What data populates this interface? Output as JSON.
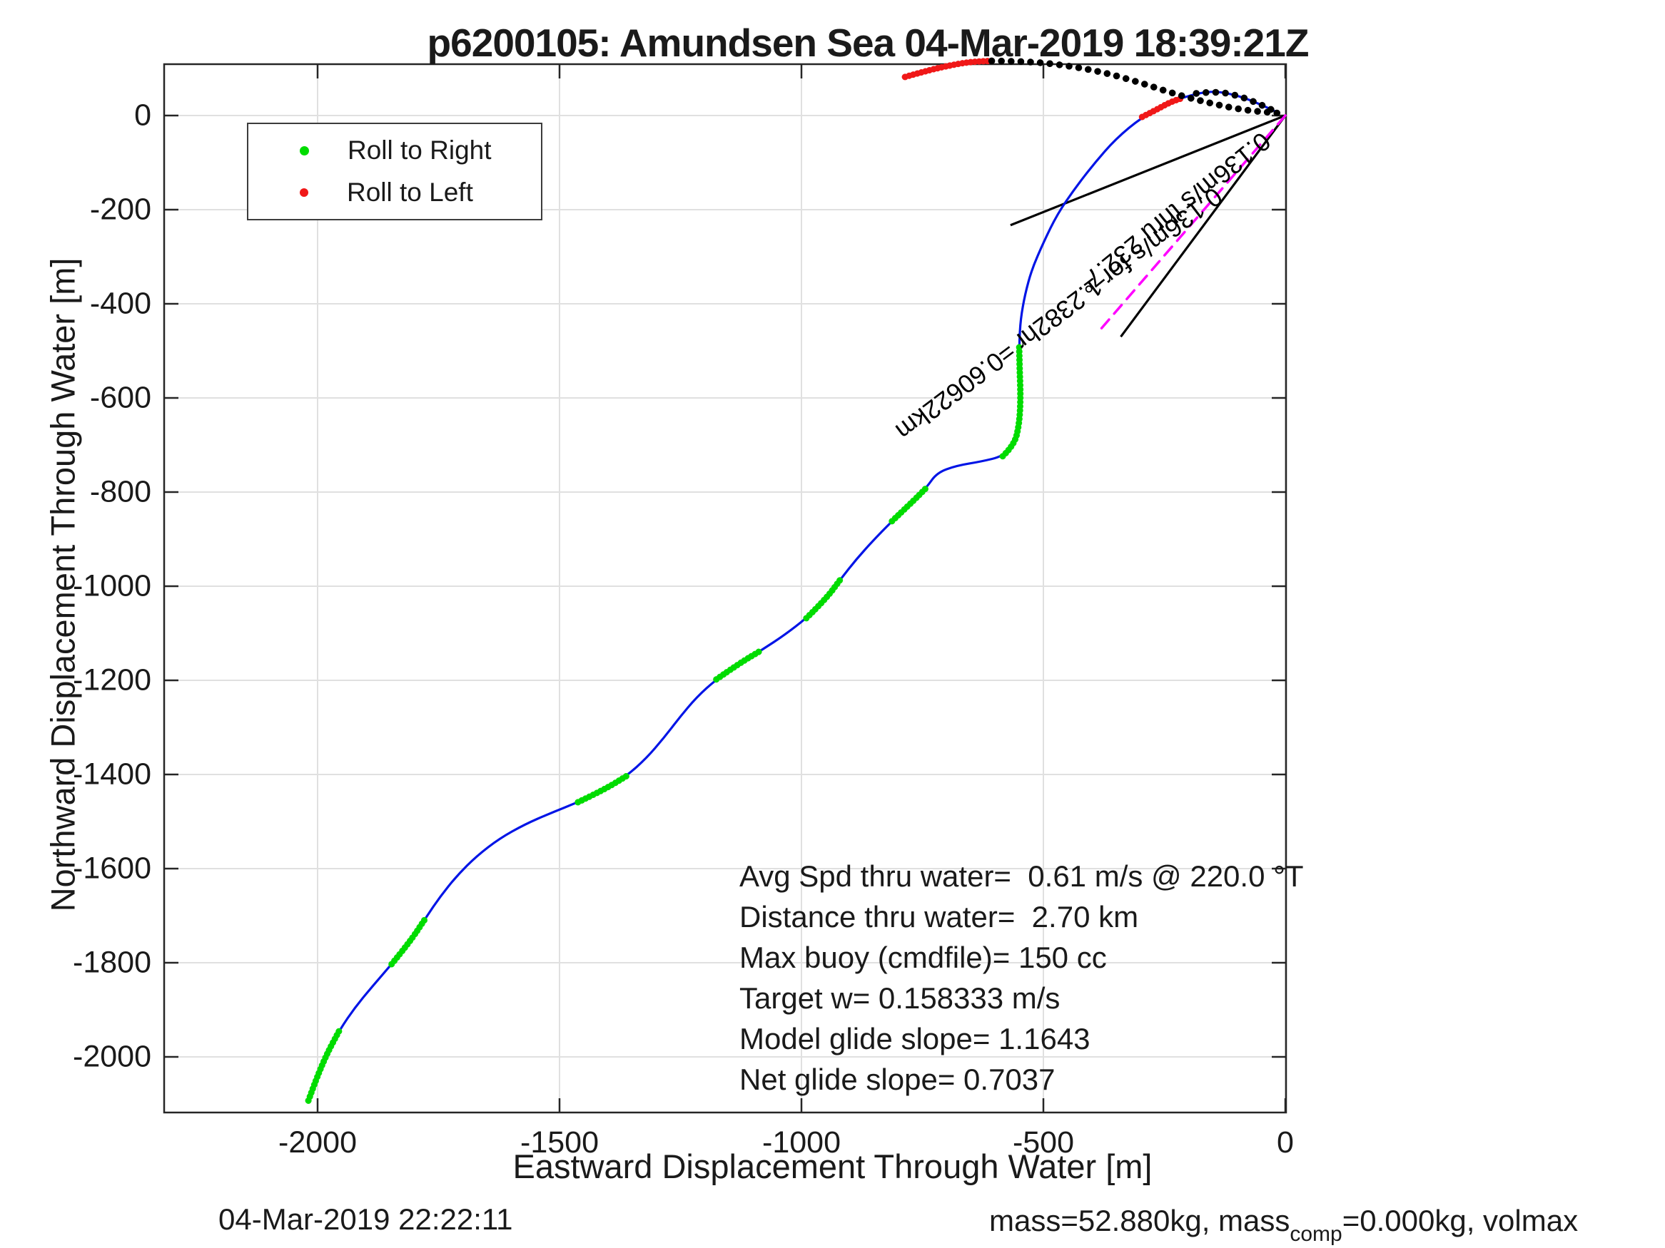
{
  "title": "p6200105: Amundsen Sea 04-Mar-2019 18:39:21Z",
  "axes": {
    "xlabel": "Eastward Displacement Through Water [m]",
    "ylabel": "Northward Displacement Through Water [m]",
    "x_ticks": [
      "-2000",
      "-1500",
      "-1000",
      "-500",
      "0"
    ],
    "y_ticks": [
      "0",
      "-200",
      "-400",
      "-600",
      "-800",
      "-1000",
      "-1200",
      "-1400",
      "-1600",
      "-1800",
      "-2000"
    ]
  },
  "legend": {
    "items": [
      {
        "label": "Roll to Right",
        "color": "#00dc00"
      },
      {
        "label": "Roll to Left",
        "color": "#f01818"
      }
    ]
  },
  "annotations": {
    "vector_label": "0.136m/s for 1.2382hr =0.60622km",
    "bearing_label": "0.136m/s thru 232.7°",
    "stats_lines": [
      "Avg Spd thru water=  0.61 m/s @ 220.0 °T",
      "Distance thru water=  2.70 km",
      "Max buoy (cmdfile)= 150 cc",
      "Target w= 0.158333 m/s",
      "Model glide slope= 1.1643",
      "Net glide slope= 0.7037"
    ]
  },
  "footer": {
    "left_timestamp": "04-Mar-2019 22:22:11",
    "right_pre": "mass=52.880kg, mass",
    "right_sub": "comp",
    "right_post": "=0.000kg, volmax"
  },
  "chart_data": {
    "type": "line",
    "title": "p6200105: Amundsen Sea 04-Mar-2019 18:39:21Z",
    "xlabel": "Eastward Displacement Through Water [m]",
    "ylabel": "Northward Displacement Through Water [m]",
    "xlim": [
      -2317,
      0
    ],
    "ylim": [
      -2126,
      109
    ],
    "x_ticks": [
      -2000,
      -1500,
      -1000,
      -500,
      0
    ],
    "y_ticks": [
      0,
      -200,
      -400,
      -600,
      -800,
      -1000,
      -1200,
      -1400,
      -1600,
      -1800,
      -2000
    ],
    "grid": true,
    "legend_position": "upper-left",
    "series": [
      {
        "name": "dive-track",
        "color": "#0014e6",
        "style": "line",
        "points": [
          [
            -2019,
            -2093
          ],
          [
            -2002,
            -2045
          ],
          [
            -1981,
            -1994
          ],
          [
            -1954,
            -1942
          ],
          [
            -1922,
            -1894
          ],
          [
            -1885,
            -1848
          ],
          [
            -1847,
            -1803
          ],
          [
            -1811,
            -1758
          ],
          [
            -1779,
            -1709
          ],
          [
            -1748,
            -1661
          ],
          [
            -1712,
            -1615
          ],
          [
            -1671,
            -1573
          ],
          [
            -1624,
            -1536
          ],
          [
            -1572,
            -1506
          ],
          [
            -1518,
            -1482
          ],
          [
            -1462,
            -1459
          ],
          [
            -1409,
            -1433
          ],
          [
            -1361,
            -1403
          ],
          [
            -1320,
            -1365
          ],
          [
            -1285,
            -1323
          ],
          [
            -1252,
            -1279
          ],
          [
            -1217,
            -1236
          ],
          [
            -1176,
            -1198
          ],
          [
            -1130,
            -1165
          ],
          [
            -1081,
            -1135
          ],
          [
            -1034,
            -1103
          ],
          [
            -990,
            -1068
          ],
          [
            -951,
            -1029
          ],
          [
            -919,
            -985
          ],
          [
            -886,
            -942
          ],
          [
            -851,
            -902
          ],
          [
            -813,
            -862
          ],
          [
            -774,
            -824
          ],
          [
            -742,
            -791
          ],
          [
            -720,
            -759
          ],
          [
            -680,
            -744
          ],
          [
            -628,
            -735
          ],
          [
            -584,
            -724
          ],
          [
            -560,
            -700
          ],
          [
            -550,
            -656
          ],
          [
            -547,
            -603
          ],
          [
            -549,
            -542
          ],
          [
            -550,
            -486
          ],
          [
            -547,
            -432
          ],
          [
            -538,
            -380
          ],
          [
            -524,
            -327
          ],
          [
            -500,
            -270
          ],
          [
            -471,
            -209
          ],
          [
            -435,
            -155
          ],
          [
            -395,
            -102
          ],
          [
            -351,
            -50
          ],
          [
            -296,
            -3
          ],
          [
            -237,
            29
          ],
          [
            -184,
            47
          ],
          [
            -142,
            52
          ],
          [
            -93,
            41
          ],
          [
            -50,
            23
          ],
          [
            -13,
            5
          ]
        ]
      },
      {
        "name": "roll-to-right",
        "color": "#00dc00",
        "style": "dots-dense",
        "segments": [
          [
            [
              -2019,
              -2093
            ],
            [
              -2002,
              -2045
            ],
            [
              -1981,
              -1994
            ],
            [
              -1954,
              -1942
            ]
          ],
          [
            [
              -1847,
              -1803
            ],
            [
              -1811,
              -1758
            ],
            [
              -1779,
              -1709
            ]
          ],
          [
            [
              -1462,
              -1459
            ],
            [
              -1409,
              -1433
            ],
            [
              -1361,
              -1403
            ]
          ],
          [
            [
              -1176,
              -1198
            ],
            [
              -1130,
              -1165
            ],
            [
              -1081,
              -1135
            ]
          ],
          [
            [
              -990,
              -1068
            ],
            [
              -951,
              -1029
            ],
            [
              -919,
              -985
            ]
          ],
          [
            [
              -813,
              -862
            ],
            [
              -774,
              -824
            ],
            [
              -742,
              -791
            ]
          ],
          [
            [
              -584,
              -724
            ],
            [
              -560,
              -700
            ],
            [
              -550,
              -656
            ],
            [
              -547,
              -603
            ],
            [
              -549,
              -542
            ],
            [
              -550,
              -486
            ]
          ]
        ]
      },
      {
        "name": "roll-to-left",
        "color": "#f01818",
        "style": "dots-dense",
        "segments": [
          [
            [
              -296,
              -3
            ],
            [
              -267,
              12
            ],
            [
              -237,
              29
            ],
            [
              -210,
              38
            ]
          ],
          [
            [
              -786,
              82
            ],
            [
              -745,
              94
            ],
            [
              -700,
              105
            ],
            [
              -653,
              114
            ],
            [
              -607,
              116
            ]
          ]
        ]
      },
      {
        "name": "surface-fixes",
        "color": "#000000",
        "style": "dots",
        "segments": [
          [
            [
              -184,
              47
            ],
            [
              -142,
              52
            ],
            [
              -93,
              41
            ],
            [
              -50,
              23
            ],
            [
              -13,
              5
            ]
          ],
          [
            [
              -607,
              116
            ],
            [
              -527,
              115
            ],
            [
              -450,
              106
            ],
            [
              -376,
              92
            ],
            [
              -300,
              70
            ],
            [
              -226,
              45
            ],
            [
              -155,
              26
            ],
            [
              -84,
              11
            ],
            [
              -13,
              5
            ]
          ]
        ]
      },
      {
        "name": "displacement-vector",
        "color": "#ff00ff",
        "style": "dashed-line",
        "points": [
          [
            0,
            0
          ],
          [
            -390,
            -464
          ]
        ]
      },
      {
        "name": "bearing-lines",
        "color": "#000000",
        "style": "line",
        "segments": [
          [
            [
              0,
              0
            ],
            [
              -568,
              -233
            ]
          ],
          [
            [
              0,
              0
            ],
            [
              -340,
              -470
            ]
          ]
        ]
      }
    ]
  }
}
